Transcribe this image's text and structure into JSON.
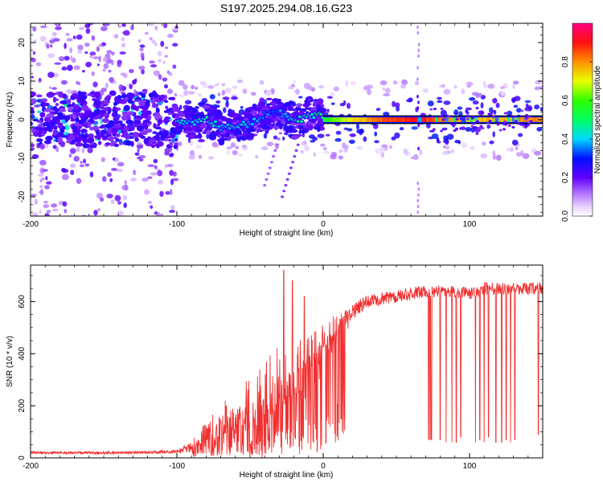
{
  "title": "S197.2025.294.08.16.G23",
  "chart_data": [
    {
      "type": "heatmap",
      "title": "S197.2025.294.08.16.G23",
      "xlabel": "Height of straight line (km)",
      "ylabel": "Frequency (Hz)",
      "xlim": [
        -200,
        150
      ],
      "ylim": [
        -25,
        25
      ],
      "xticks": [
        -200,
        -100,
        0,
        100
      ],
      "xtick_labels": [
        "-200",
        "-100",
        "0",
        "100"
      ],
      "yticks": [
        -20,
        -10,
        0,
        10,
        20
      ],
      "ytick_labels": [
        "-20",
        "-10",
        "0",
        "10",
        "20"
      ],
      "colorbar": {
        "label": "Normalized spectral amplitude",
        "range": [
          0,
          1
        ],
        "ticks": [
          0.0,
          0.2,
          0.4,
          0.6,
          0.8
        ],
        "tick_labels": [
          "0.0",
          "0.2",
          "0.4",
          "0.6",
          "0.8"
        ]
      },
      "signal": {
        "ridge_frequency_hz": 0,
        "band_halfwidth_hz": 1,
        "strong_amplitude_from_km": 0,
        "ridge_path": [
          {
            "h": -100,
            "f": 0.0,
            "amp": 0.45
          },
          {
            "h": -90,
            "f": -1.0,
            "amp": 0.4
          },
          {
            "h": -80,
            "f": 0.0,
            "amp": 0.45
          },
          {
            "h": -70,
            "f": -2.0,
            "amp": 0.4
          },
          {
            "h": -60,
            "f": -1.5,
            "amp": 0.45
          },
          {
            "h": -50,
            "f": -1.0,
            "amp": 0.4
          },
          {
            "h": -40,
            "f": 1.5,
            "amp": 0.35
          },
          {
            "h": -30,
            "f": 2.0,
            "amp": 0.35
          },
          {
            "h": -20,
            "f": -1.0,
            "amp": 0.45
          },
          {
            "h": -10,
            "f": 1.5,
            "amp": 0.45
          },
          {
            "h": 0,
            "f": 1.0,
            "amp": 0.55
          },
          {
            "h": 10,
            "f": 0.0,
            "amp": 0.65
          },
          {
            "h": 40,
            "f": 0.0,
            "amp": 0.85
          },
          {
            "h": 64,
            "f": 0.0,
            "amp": 0.9
          },
          {
            "h": 100,
            "f": 0.0,
            "amp": 0.75
          },
          {
            "h": 150,
            "f": 0.0,
            "amp": 0.8
          }
        ],
        "notch_near_km": 65
      }
    },
    {
      "type": "line",
      "xlabel": "Height of straight line (km)",
      "ylabel": "SNR (10 * v/v)",
      "xlim": [
        -200,
        150
      ],
      "ylim": [
        0,
        740
      ],
      "xticks": [
        -200,
        -100,
        0,
        100
      ],
      "xtick_labels": [
        "-200",
        "-100",
        "0",
        "100"
      ],
      "yticks": [
        0,
        200,
        400,
        600
      ],
      "ytick_labels": [
        "0",
        "200",
        "400",
        "600"
      ],
      "series": [
        {
          "name": "SNR",
          "color": "#f03030",
          "envelope": [
            {
              "x": -200,
              "y": 20
            },
            {
              "x": -130,
              "y": 20
            },
            {
              "x": -100,
              "y": 25
            },
            {
              "x": -90,
              "y": 40
            },
            {
              "x": -80,
              "y": 80
            },
            {
              "x": -70,
              "y": 120
            },
            {
              "x": -50,
              "y": 150
            },
            {
              "x": -40,
              "y": 180
            },
            {
              "x": -30,
              "y": 230
            },
            {
              "x": -20,
              "y": 280
            },
            {
              "x": -10,
              "y": 350
            },
            {
              "x": 0,
              "y": 420
            },
            {
              "x": 10,
              "y": 500
            },
            {
              "x": 20,
              "y": 560
            },
            {
              "x": 30,
              "y": 600
            },
            {
              "x": 50,
              "y": 620
            },
            {
              "x": 65,
              "y": 635
            },
            {
              "x": 75,
              "y": 640
            },
            {
              "x": 90,
              "y": 640
            },
            {
              "x": 100,
              "y": 630
            },
            {
              "x": 110,
              "y": 650
            },
            {
              "x": 150,
              "y": 650
            }
          ],
          "noise_amplitude": [
            {
              "x": -200,
              "y": 8
            },
            {
              "x": -100,
              "y": 10
            },
            {
              "x": -80,
              "y": 60
            },
            {
              "x": -35,
              "y": 220
            },
            {
              "x": -20,
              "y": 160
            },
            {
              "x": 0,
              "y": 90
            },
            {
              "x": 30,
              "y": 40
            },
            {
              "x": 150,
              "y": 40
            }
          ],
          "spikes": [
            {
              "x": -27,
              "y": 720
            },
            {
              "x": -21,
              "y": 680
            },
            {
              "x": -13,
              "y": 620
            }
          ],
          "dropouts": [
            {
              "x": 72,
              "y": 70
            },
            {
              "x": 73,
              "y": 65
            },
            {
              "x": 74,
              "y": 70
            },
            {
              "x": 80,
              "y": 70
            },
            {
              "x": 84,
              "y": 60
            },
            {
              "x": 88,
              "y": 60
            },
            {
              "x": 91,
              "y": 60
            },
            {
              "x": 94,
              "y": 80
            },
            {
              "x": 104,
              "y": 60
            },
            {
              "x": 107,
              "y": 70
            },
            {
              "x": 110,
              "y": 60
            },
            {
              "x": 113,
              "y": 80
            },
            {
              "x": 118,
              "y": 60
            },
            {
              "x": 122,
              "y": 60
            },
            {
              "x": 125,
              "y": 70
            },
            {
              "x": 128,
              "y": 60
            },
            {
              "x": 131,
              "y": 70
            },
            {
              "x": 147,
              "y": 90
            }
          ]
        }
      ]
    }
  ]
}
